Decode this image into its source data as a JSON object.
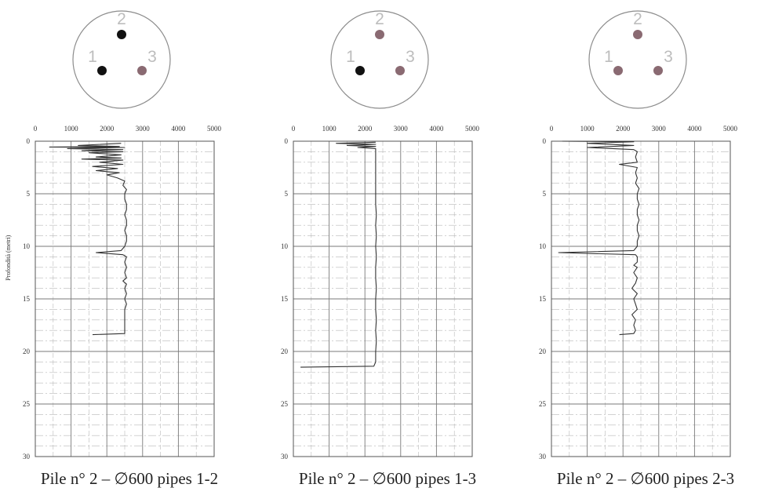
{
  "chart_data": [
    {
      "type": "line",
      "title": "Pile n° 2 – ∅600 pipes 1-2",
      "ylabel": "Profondità (metri)",
      "xlabel": "",
      "xlim": [
        0,
        5000
      ],
      "ylim": [
        0,
        30
      ],
      "x_ticks": [
        "0",
        "1000",
        "2000",
        "3000",
        "4000",
        "5000"
      ],
      "y_ticks": [
        "0",
        "5",
        "10",
        "15",
        "20",
        "25",
        "30"
      ],
      "grid": true,
      "y_inverted": true,
      "pipe_diagram": {
        "labels": [
          "1",
          "2",
          "3"
        ],
        "active_pipes": [
          "1",
          "2"
        ],
        "colors": {
          "active": "#111111",
          "inactive": "#8a6a72"
        }
      },
      "series": [
        {
          "color": "#333333",
          "depth": [
            0.2,
            0.4,
            0.5,
            0.55,
            0.6,
            0.7,
            0.8,
            0.9,
            1.0,
            1.1,
            1.3,
            1.5,
            1.6,
            1.7,
            1.8,
            2.0,
            2.2,
            2.4,
            2.6,
            2.8,
            3.0,
            3.2,
            3.5,
            3.8,
            4.2,
            4.6,
            5.0,
            5.5,
            6.0,
            6.5,
            7.0,
            7.5,
            8.0,
            8.5,
            9.0,
            9.5,
            10.0,
            10.4,
            10.6,
            10.8,
            11.0,
            11.5,
            12.0,
            12.5,
            13.0,
            13.3,
            13.6,
            14.0,
            14.5,
            15.0,
            15.5,
            16.0,
            16.5,
            17.0,
            17.5,
            18.0,
            18.3,
            18.4
          ],
          "value": [
            2400,
            1200,
            2350,
            400,
            2500,
            900,
            2450,
            1300,
            2450,
            1500,
            2400,
            1700,
            2400,
            1300,
            2450,
            1800,
            2450,
            1600,
            2300,
            1700,
            2350,
            2000,
            2300,
            2500,
            2450,
            2550,
            2500,
            2500,
            2550,
            2550,
            2500,
            2550,
            2550,
            2500,
            2550,
            2550,
            2500,
            2400,
            1700,
            2450,
            2550,
            2500,
            2550,
            2500,
            2550,
            2450,
            2550,
            2500,
            2550,
            2500,
            2550,
            2500,
            2500,
            2500,
            2500,
            2500,
            2500,
            1600
          ]
        }
      ]
    },
    {
      "type": "line",
      "title": "Pile n° 2 – ∅600 pipes 1-3",
      "ylabel": "",
      "xlabel": "",
      "xlim": [
        0,
        5000
      ],
      "ylim": [
        0,
        30
      ],
      "x_ticks": [
        "0",
        "1000",
        "2000",
        "3000",
        "4000",
        "5000"
      ],
      "y_ticks": [
        "0",
        "5",
        "10",
        "15",
        "20",
        "25",
        "30"
      ],
      "grid": true,
      "y_inverted": true,
      "pipe_diagram": {
        "labels": [
          "1",
          "2",
          "3"
        ],
        "active_pipes": [
          "1"
        ],
        "colors": {
          "active": "#111111",
          "inactive": "#8a6a72"
        }
      },
      "series": [
        {
          "color": "#333333",
          "depth": [
            0.1,
            0.2,
            0.3,
            0.4,
            0.5,
            0.6,
            0.7,
            1.0,
            2.0,
            3.0,
            4.0,
            5.0,
            6.0,
            7.0,
            8.0,
            9.0,
            10.0,
            11.0,
            12.0,
            13.0,
            14.0,
            15.0,
            16.0,
            17.0,
            18.0,
            19.0,
            20.0,
            21.0,
            21.4,
            21.5
          ],
          "value": [
            2300,
            1200,
            2300,
            1500,
            2300,
            1800,
            2300,
            2300,
            2300,
            2300,
            2300,
            2300,
            2300,
            2320,
            2300,
            2320,
            2300,
            2320,
            2300,
            2300,
            2320,
            2300,
            2300,
            2320,
            2300,
            2320,
            2300,
            2300,
            2250,
            200
          ]
        }
      ]
    },
    {
      "type": "line",
      "title": "Pile n° 2 – ∅600 pipes 2-3",
      "ylabel": "",
      "xlabel": "",
      "xlim": [
        0,
        5000
      ],
      "ylim": [
        0,
        30
      ],
      "x_ticks": [
        "0",
        "1000",
        "2000",
        "3000",
        "4000",
        "5000"
      ],
      "y_ticks": [
        "0",
        "5",
        "10",
        "15",
        "20",
        "25",
        "30"
      ],
      "grid": true,
      "y_inverted": true,
      "pipe_diagram": {
        "labels": [
          "1",
          "2",
          "3"
        ],
        "active_pipes": [],
        "colors": {
          "active": "#111111",
          "inactive": "#8a6a72"
        }
      },
      "series": [
        {
          "color": "#333333",
          "depth": [
            0.0,
            0.05,
            0.2,
            0.4,
            0.6,
            0.8,
            1.0,
            1.5,
            2.0,
            2.2,
            2.5,
            3.0,
            3.5,
            4.0,
            4.5,
            5.0,
            5.5,
            6.0,
            6.5,
            7.0,
            7.5,
            8.0,
            8.5,
            9.0,
            9.5,
            10.0,
            10.4,
            10.6,
            10.8,
            11.0,
            11.5,
            11.8,
            12.0,
            12.5,
            13.0,
            13.5,
            14.0,
            14.5,
            15.0,
            15.5,
            16.0,
            16.5,
            17.0,
            17.5,
            18.0,
            18.3,
            18.4
          ],
          "value": [
            300,
            2300,
            1000,
            2300,
            1000,
            2300,
            2400,
            2350,
            2400,
            1900,
            2400,
            2350,
            2400,
            2350,
            2450,
            2400,
            2400,
            2450,
            2400,
            2400,
            2450,
            2400,
            2400,
            2450,
            2400,
            2400,
            2300,
            200,
            2350,
            2400,
            2400,
            2300,
            2400,
            2300,
            2400,
            2350,
            2250,
            2400,
            2300,
            2350,
            2400,
            2250,
            2350,
            2300,
            2350,
            2300,
            1900
          ]
        }
      ]
    }
  ]
}
